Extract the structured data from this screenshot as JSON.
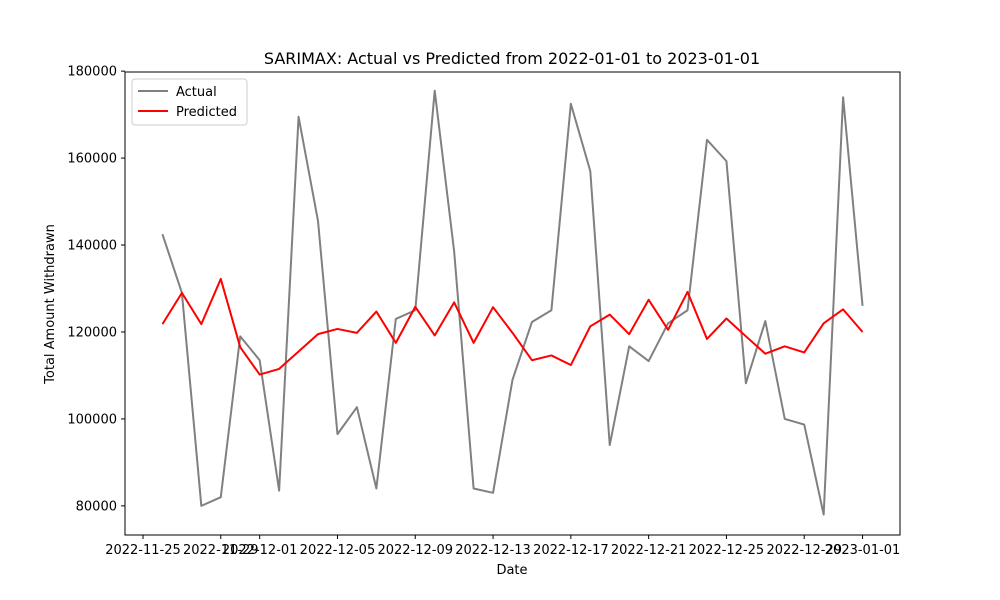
{
  "chart_data": {
    "type": "line",
    "title": "SARIMAX: Actual vs Predicted from 2022-01-01 to 2023-01-01",
    "xlabel": "Date",
    "ylabel": "Total Amount Withdrawn",
    "xlim": [
      "2022-11-24T01:48",
      "2023-01-02T22:12"
    ],
    "ylim": [
      73300,
      179800
    ],
    "x_ticks": [
      "2022-11-25",
      "2022-11-29",
      "2022-12-01",
      "2022-12-05",
      "2022-12-09",
      "2022-12-13",
      "2022-12-17",
      "2022-12-21",
      "2022-12-25",
      "2022-12-29",
      "2023-01-01"
    ],
    "y_ticks": [
      80000,
      100000,
      120000,
      140000,
      160000,
      180000
    ],
    "y_tick_labels": [
      "80000",
      "100000",
      "120000",
      "140000",
      "160000",
      "180000"
    ],
    "legend": {
      "placement": "top-left",
      "entries": [
        "Actual",
        "Predicted"
      ]
    },
    "grid": false,
    "x": [
      "2022-11-26",
      "2022-11-27",
      "2022-11-28",
      "2022-11-29",
      "2022-11-30",
      "2022-12-01",
      "2022-12-02",
      "2022-12-03",
      "2022-12-04",
      "2022-12-05",
      "2022-12-06",
      "2022-12-07",
      "2022-12-08",
      "2022-12-09",
      "2022-12-10",
      "2022-12-11",
      "2022-12-12",
      "2022-12-13",
      "2022-12-14",
      "2022-12-15",
      "2022-12-16",
      "2022-12-17",
      "2022-12-18",
      "2022-12-19",
      "2022-12-20",
      "2022-12-21",
      "2022-12-22",
      "2022-12-23",
      "2022-12-24",
      "2022-12-25",
      "2022-12-26",
      "2022-12-27",
      "2022-12-28",
      "2022-12-29",
      "2022-12-30",
      "2022-12-31",
      "2023-01-01"
    ],
    "series": [
      {
        "name": "Actual",
        "color": "#808080",
        "values": [
          142500,
          129000,
          80000,
          82000,
          119000,
          113500,
          83500,
          169500,
          145500,
          96500,
          102700,
          84000,
          123000,
          125000,
          175500,
          138500,
          84000,
          83000,
          109000,
          122300,
          125000,
          172500,
          157000,
          94000,
          116700,
          113300,
          122000,
          125000,
          164200,
          159300,
          108200,
          122500,
          100000,
          98700,
          78000,
          174000,
          126000
        ]
      },
      {
        "name": "Predicted",
        "color": "#ff0000",
        "values": [
          121800,
          129000,
          121800,
          132200,
          116500,
          110200,
          111500,
          115500,
          119500,
          120700,
          119800,
          124700,
          117500,
          125800,
          119200,
          126800,
          117500,
          125700,
          119800,
          113500,
          114600,
          112400,
          121300,
          124000,
          119500,
          127400,
          120500,
          129200,
          118400,
          123100,
          119000,
          115000,
          116700,
          115300,
          122000,
          125200,
          120000
        ]
      }
    ]
  }
}
